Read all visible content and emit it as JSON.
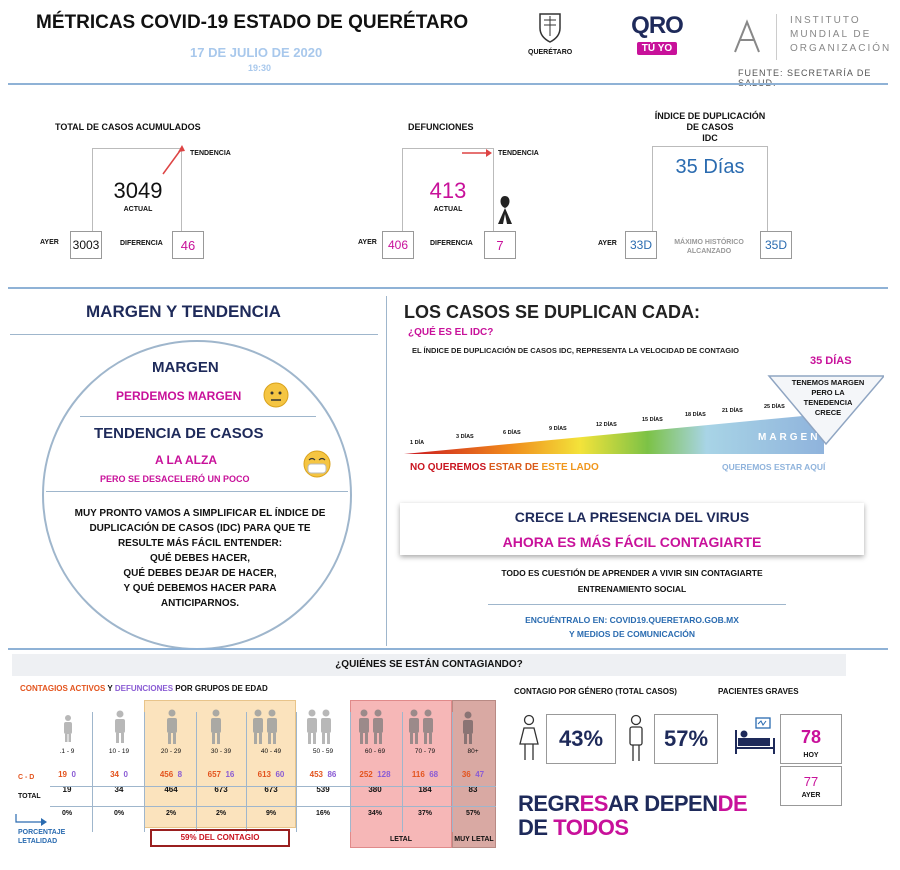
{
  "header": {
    "title": "MÉTRICAS COVID-19 ESTADO DE QUERÉTARO",
    "date": "17 DE JULIO DE 2020",
    "time": "19:30",
    "logo_queretaro": "QUERÉTARO",
    "logo_qro": "QRO",
    "logo_tuyo": "TÚ YO",
    "imo_line1": "INSTITUTO",
    "imo_line2": "MUNDIAL DE",
    "imo_line3": "ORGANIZACIÓN",
    "source": "FUENTE: SECRETARÍA DE SALUD."
  },
  "casos": {
    "title": "TOTAL DE CASOS ACUMULADOS",
    "tendencia": "TENDENCIA",
    "actual": "3049",
    "actual_label": "ACTUAL",
    "ayer_label": "AYER",
    "ayer": "3003",
    "diferencia_label": "DIFERENCIA",
    "diferencia": "46"
  },
  "defunciones": {
    "title": "DEFUNCIONES",
    "tendencia": "TENDENCIA",
    "actual": "413",
    "actual_label": "ACTUAL",
    "ayer_label": "AYER",
    "ayer": "406",
    "diferencia_label": "DIFERENCIA",
    "diferencia": "7"
  },
  "idc": {
    "title1": "ÍNDICE DE DUPLICACIÓN",
    "title2": "DE CASOS",
    "title3": "IDC",
    "actual": "35 Días",
    "ayer_label": "AYER",
    "ayer": "33D",
    "max_label1": "MÁXIMO HISTÓRICO",
    "max_label2": "ALCANZADO",
    "max": "35D"
  },
  "margen": {
    "section_title": "MARGEN Y TENDENCIA",
    "margen_title": "MARGEN",
    "margen_value": "PERDEMOS MARGEN",
    "tendencia_title": "TENDENCIA DE CASOS",
    "tendencia_value": "A LA ALZA",
    "tendencia_note": "PERO SE DESACELERÓ UN POCO",
    "msg1": "MUY PRONTO VAMOS A SIMPLIFICAR EL ÍNDICE DE",
    "msg2": "DUPLICACIÓN DE CASOS (IDC) PARA QUE TE",
    "msg3": "RESULTE MÁS FÁCIL ENTENDER:",
    "msg4": "QUÉ DEBES HACER,",
    "msg5": "QUÉ DEBES DEJAR DE HACER,",
    "msg6": "Y QUÉ DEBEMOS HACER PARA",
    "msg7": "ANTICIPARNOS."
  },
  "duplican": {
    "title": "LOS CASOS SE DUPLICAN CADA:",
    "question": "¿QUÉ ES EL IDC?",
    "desc_a": "EL ÍNDICE DE DUPLICACIÓN DE CASOS ",
    "desc_b": "IDC",
    "desc_c": ", REPRESENTA LA VELOCIDAD DE CONTAGIO",
    "current": "35 DÍAS",
    "scale": [
      "1 DÍA",
      "3 DÍAS",
      "6 DÍAS",
      "9 DÍAS",
      "12 DÍAS",
      "15 DÍAS",
      "18 DÍAS",
      "21 DÍAS",
      "25 DÍAS"
    ],
    "margen_label": "MARGEN",
    "tri_text1": "TENEMOS MARGEN",
    "tri_text2": "PERO LA",
    "tri_text3": "TENEDENCIA",
    "tri_text4": "CRECE",
    "no_queremos_a": "NO QUEREMOS ",
    "no_queremos_b": "ESTAR DE ",
    "no_queremos_c": "ESTE LADO",
    "queremos": "QUEREMOS ESTAR AQUÍ",
    "crece1": "CRECE LA PRESENCIA DEL VIRUS",
    "crece2": "AHORA ES MÁS FÁCIL CONTAGIARTE",
    "todo1": "TODO ES CUESTIÓN DE APRENDER A VIVIR SIN CONTAGIARTE",
    "todo2": "ENTRENAMIENTO SOCIAL",
    "link1": "ENCUÉNTRALO EN: COVID19.QUERETARO.GOB.MX",
    "link2": "Y MEDIOS DE COMUNICACIÓN"
  },
  "quienes": {
    "title": "¿QUIÉNES SE ESTÁN CONTAGIANDO?",
    "legend_a": "CONTAGIOS ACTIVOS",
    "legend_b": " Y ",
    "legend_c": "DEFUNCIONES",
    "legend_d": " POR GRUPOS DE EDAD",
    "cd_label": "C - D",
    "total_label": "TOTAL",
    "pct_label1": "PORCENTAJE",
    "pct_label2": "LETALIDAD",
    "groups": [
      {
        "age": ".1 - 9",
        "c": "19",
        "d": "0",
        "total": "19",
        "pct": "0%"
      },
      {
        "age": "10 - 19",
        "c": "34",
        "d": "0",
        "total": "34",
        "pct": "0%"
      },
      {
        "age": "20 - 29",
        "c": "456",
        "d": "8",
        "total": "464",
        "pct": "2%"
      },
      {
        "age": "30 - 39",
        "c": "657",
        "d": "16",
        "total": "673",
        "pct": "2%"
      },
      {
        "age": "40 - 49",
        "c": "613",
        "d": "60",
        "total": "673",
        "pct": "9%"
      },
      {
        "age": "50 - 59",
        "c": "453",
        "d": "86",
        "total": "539",
        "pct": "16%"
      },
      {
        "age": "60 - 69",
        "c": "252",
        "d": "128",
        "total": "380",
        "pct": "34%"
      },
      {
        "age": "70 - 79",
        "c": "116",
        "d": "68",
        "total": "184",
        "pct": "37%"
      },
      {
        "age": "80+",
        "c": "36",
        "d": "47",
        "total": "83",
        "pct": "57%"
      }
    ],
    "contagio_pct": "59%",
    "contagio_label": " DEL CONTAGIO",
    "letal": "LETAL",
    "muy_letal": "MUY LETAL"
  },
  "genero": {
    "title": "CONTAGIO POR GÉNERO (TOTAL CASOS)",
    "female": "43%",
    "male": "57%"
  },
  "graves": {
    "title": "PACIENTES GRAVES",
    "hoy": "78",
    "hoy_label": "HOY",
    "ayer": "77",
    "ayer_label": "AYER"
  },
  "regresar": {
    "a": "REGR",
    "b": "ES",
    "c": "AR DEPEN",
    "d": "DE",
    "e": "DE ",
    "f": "TODOS"
  },
  "colors": {
    "magenta": "#c8119a",
    "navy": "#1e2a5a",
    "blue": "#2a6bb0",
    "orange_band": "#fbe3bd",
    "red_band": "#f6b7b7",
    "brown_band": "#d9a9a3"
  }
}
